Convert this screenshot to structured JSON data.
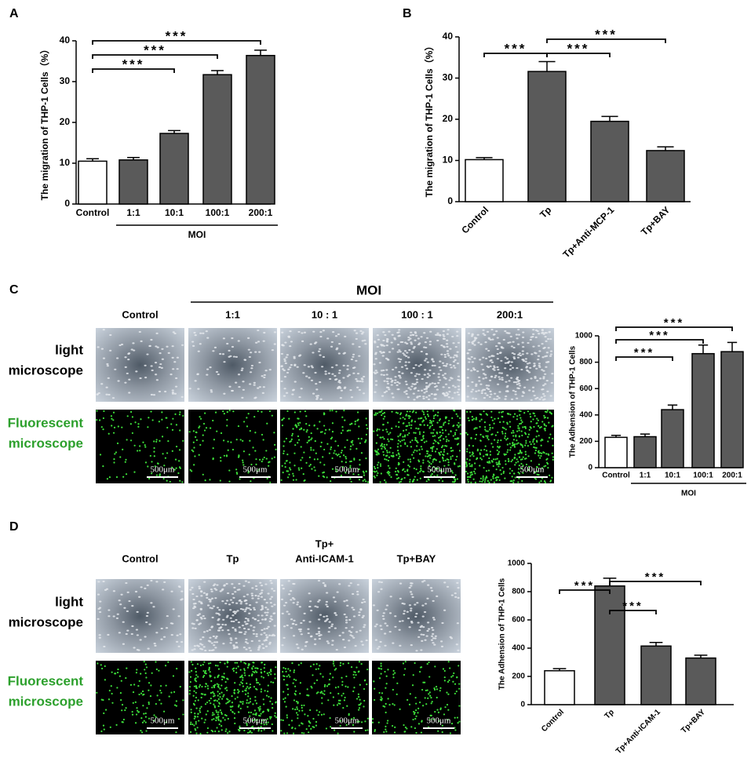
{
  "panel_labels": [
    "A",
    "B",
    "C",
    "D"
  ],
  "chart_data": [
    {
      "type": "bar",
      "ylabel": "The migration of THP-1 Cells（%）",
      "categories": [
        "Control",
        "1:1",
        "10:1",
        "100:1",
        "200:1"
      ],
      "values": [
        10.5,
        10.8,
        17.3,
        31.7,
        36.4
      ],
      "errors": [
        0.6,
        0.6,
        0.7,
        1.0,
        1.3
      ],
      "bar_colors": [
        "#ffffff",
        "#5a5a5a",
        "#5a5a5a",
        "#5a5a5a",
        "#5a5a5a"
      ],
      "ylim": [
        0,
        40
      ],
      "yticks": [
        0,
        10,
        20,
        30,
        40
      ],
      "group": {
        "label": "MOI",
        "categories": [
          "1:1",
          "200:1"
        ]
      },
      "brackets": [
        {
          "label": "***",
          "between": [
            "Control",
            "10:1"
          ]
        },
        {
          "label": "***",
          "between": [
            "Control",
            "100:1"
          ]
        },
        {
          "label": "***",
          "between": [
            "Control",
            "200:1"
          ]
        }
      ]
    },
    {
      "type": "bar",
      "ylabel": "The migration of THP-1 Cells（%）",
      "categories": [
        "Control",
        "Tp",
        "Tp+Anti-MCP-1",
        "Tp+BAY"
      ],
      "values": [
        10.2,
        31.6,
        19.5,
        12.4
      ],
      "errors": [
        0.5,
        2.4,
        1.2,
        0.9
      ],
      "bar_colors": [
        "#ffffff",
        "#5a5a5a",
        "#5a5a5a",
        "#5a5a5a"
      ],
      "ylim": [
        0,
        40
      ],
      "yticks": [
        0,
        10,
        20,
        30,
        40
      ],
      "brackets": [
        {
          "label": "***",
          "between": [
            "Control",
            "Tp"
          ]
        },
        {
          "label": "***",
          "between": [
            "Tp",
            "Tp+Anti-MCP-1"
          ]
        },
        {
          "label": "***",
          "between": [
            "Tp",
            "Tp+BAY"
          ]
        }
      ]
    },
    {
      "type": "bar",
      "ylabel": "The Adhension of THP-1 Cells",
      "categories": [
        "Control",
        "1:1",
        "10:1",
        "100:1",
        "200:1"
      ],
      "values": [
        230,
        235,
        440,
        865,
        880
      ],
      "errors": [
        15,
        20,
        35,
        65,
        70
      ],
      "bar_colors": [
        "#ffffff",
        "#5a5a5a",
        "#5a5a5a",
        "#5a5a5a",
        "#5a5a5a"
      ],
      "ylim": [
        0,
        1000
      ],
      "yticks": [
        0,
        200,
        400,
        600,
        800,
        1000
      ],
      "group": {
        "label": "MOI",
        "categories": [
          "1:1",
          "200:1"
        ]
      },
      "brackets": [
        {
          "label": "***",
          "between": [
            "Control",
            "10:1"
          ]
        },
        {
          "label": "***",
          "between": [
            "Control",
            "100:1"
          ]
        },
        {
          "label": "***",
          "between": [
            "Control",
            "200:1"
          ]
        }
      ]
    },
    {
      "type": "bar",
      "ylabel": "The Adhension of THP-1 Cells",
      "categories": [
        "Control",
        "Tp",
        "Tp+Anti-ICAM-1",
        "Tp+BAY"
      ],
      "values": [
        240,
        840,
        415,
        330
      ],
      "errors": [
        15,
        55,
        25,
        20
      ],
      "bar_colors": [
        "#ffffff",
        "#5a5a5a",
        "#5a5a5a",
        "#5a5a5a"
      ],
      "ylim": [
        0,
        1000
      ],
      "yticks": [
        0,
        200,
        400,
        600,
        800,
        1000
      ],
      "brackets": [
        {
          "label": "***",
          "between": [
            "Control",
            "Tp"
          ]
        },
        {
          "label": "***",
          "between": [
            "Tp",
            "Tp+Anti-ICAM-1"
          ]
        },
        {
          "label": "***",
          "between": [
            "Tp",
            "Tp+BAY"
          ]
        }
      ]
    }
  ],
  "images": {
    "c": {
      "group_label": "MOI",
      "columns": [
        [
          "Control"
        ],
        [
          "1:1"
        ],
        [
          "10 : 1"
        ],
        [
          "100 : 1"
        ],
        [
          "200:1"
        ]
      ],
      "rows": [
        [
          "light",
          "microscope"
        ],
        [
          "Fluorescent",
          "microscope"
        ]
      ],
      "scale_bar": "500μm"
    },
    "d": {
      "columns": [
        [
          "Control"
        ],
        [
          "Tp"
        ],
        [
          "Tp+",
          "Anti-ICAM-1"
        ],
        [
          "Tp+BAY"
        ]
      ],
      "rows": [
        [
          "light",
          "microscope"
        ],
        [
          "Fluorescent",
          "microscope"
        ]
      ],
      "scale_bar": "500μm"
    }
  }
}
